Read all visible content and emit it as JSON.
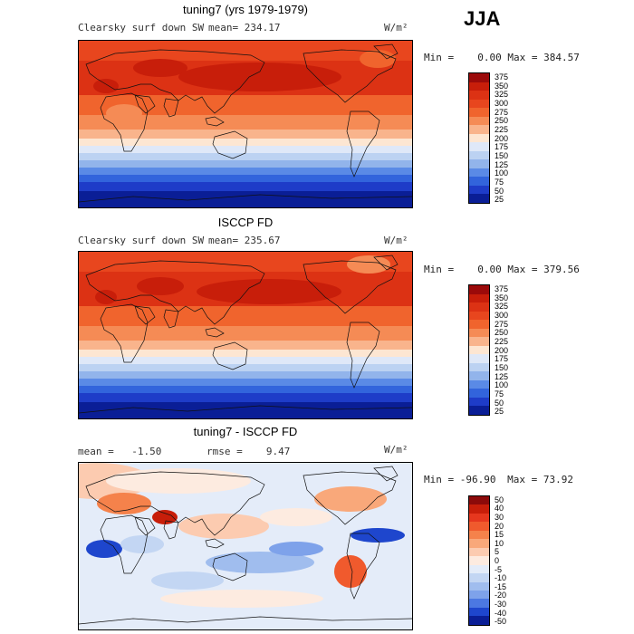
{
  "season": "JJA",
  "chart_data": [
    {
      "type": "heatmap",
      "title": "tuning7 (yrs 1979-1979)",
      "variable": "Clearsky surf down SW",
      "stat_label": "mean=",
      "stat_value": "234.17",
      "units": "W/m²",
      "min_label": "Min =",
      "min_value": "0.00",
      "max_label": "Max =",
      "max_value": "384.57",
      "levels": [
        "375",
        "350",
        "325",
        "300",
        "275",
        "250",
        "225",
        "200",
        "175",
        "150",
        "125",
        "100",
        "75",
        "50",
        "25"
      ],
      "colors": [
        "#9b0a0a",
        "#c81e0a",
        "#dc3214",
        "#e8461e",
        "#f0642d",
        "#f58b55",
        "#f9b48c",
        "#fde6d2",
        "#dfe8f8",
        "#bcd2f2",
        "#92b4eb",
        "#5a8ae6",
        "#3264dc",
        "#1e3cc8",
        "#0a1e96"
      ]
    },
    {
      "type": "heatmap",
      "title": "ISCCP FD",
      "variable": "Clearsky surf down SW",
      "stat_label": "mean=",
      "stat_value": "235.67",
      "units": "W/m²",
      "min_label": "Min =",
      "min_value": "0.00",
      "max_label": "Max =",
      "max_value": "379.56",
      "levels": [
        "375",
        "350",
        "325",
        "300",
        "275",
        "250",
        "225",
        "200",
        "175",
        "150",
        "125",
        "100",
        "75",
        "50",
        "25"
      ],
      "colors": [
        "#9b0a0a",
        "#c81e0a",
        "#dc3214",
        "#e8461e",
        "#f0642d",
        "#f58b55",
        "#f9b48c",
        "#fde6d2",
        "#dfe8f8",
        "#bcd2f2",
        "#92b4eb",
        "#5a8ae6",
        "#3264dc",
        "#1e3cc8",
        "#0a1e96"
      ]
    },
    {
      "type": "heatmap",
      "title": "tuning7 - ISCCP FD",
      "stat_label": "mean =",
      "stat_value": "-1.50",
      "rmse_label": "rmse =",
      "rmse_value": "9.47",
      "units": "W/m²",
      "min_label": "Min =",
      "min_value": "-96.90",
      "max_label": "Max =",
      "max_value": "73.92",
      "levels": [
        "50",
        "40",
        "30",
        "20",
        "15",
        "10",
        "5",
        "0",
        "-5",
        "-10",
        "-15",
        "-20",
        "-30",
        "-40",
        "-50"
      ],
      "colors": [
        "#8c0a0a",
        "#c81e0a",
        "#e6371e",
        "#f05a2d",
        "#f5824b",
        "#f9a87a",
        "#fccbb0",
        "#fdebe0",
        "#e4ecf9",
        "#c3d6f3",
        "#a0bdee",
        "#7ea2ea",
        "#4c78e2",
        "#1e46cd",
        "#0a1e96"
      ]
    }
  ]
}
